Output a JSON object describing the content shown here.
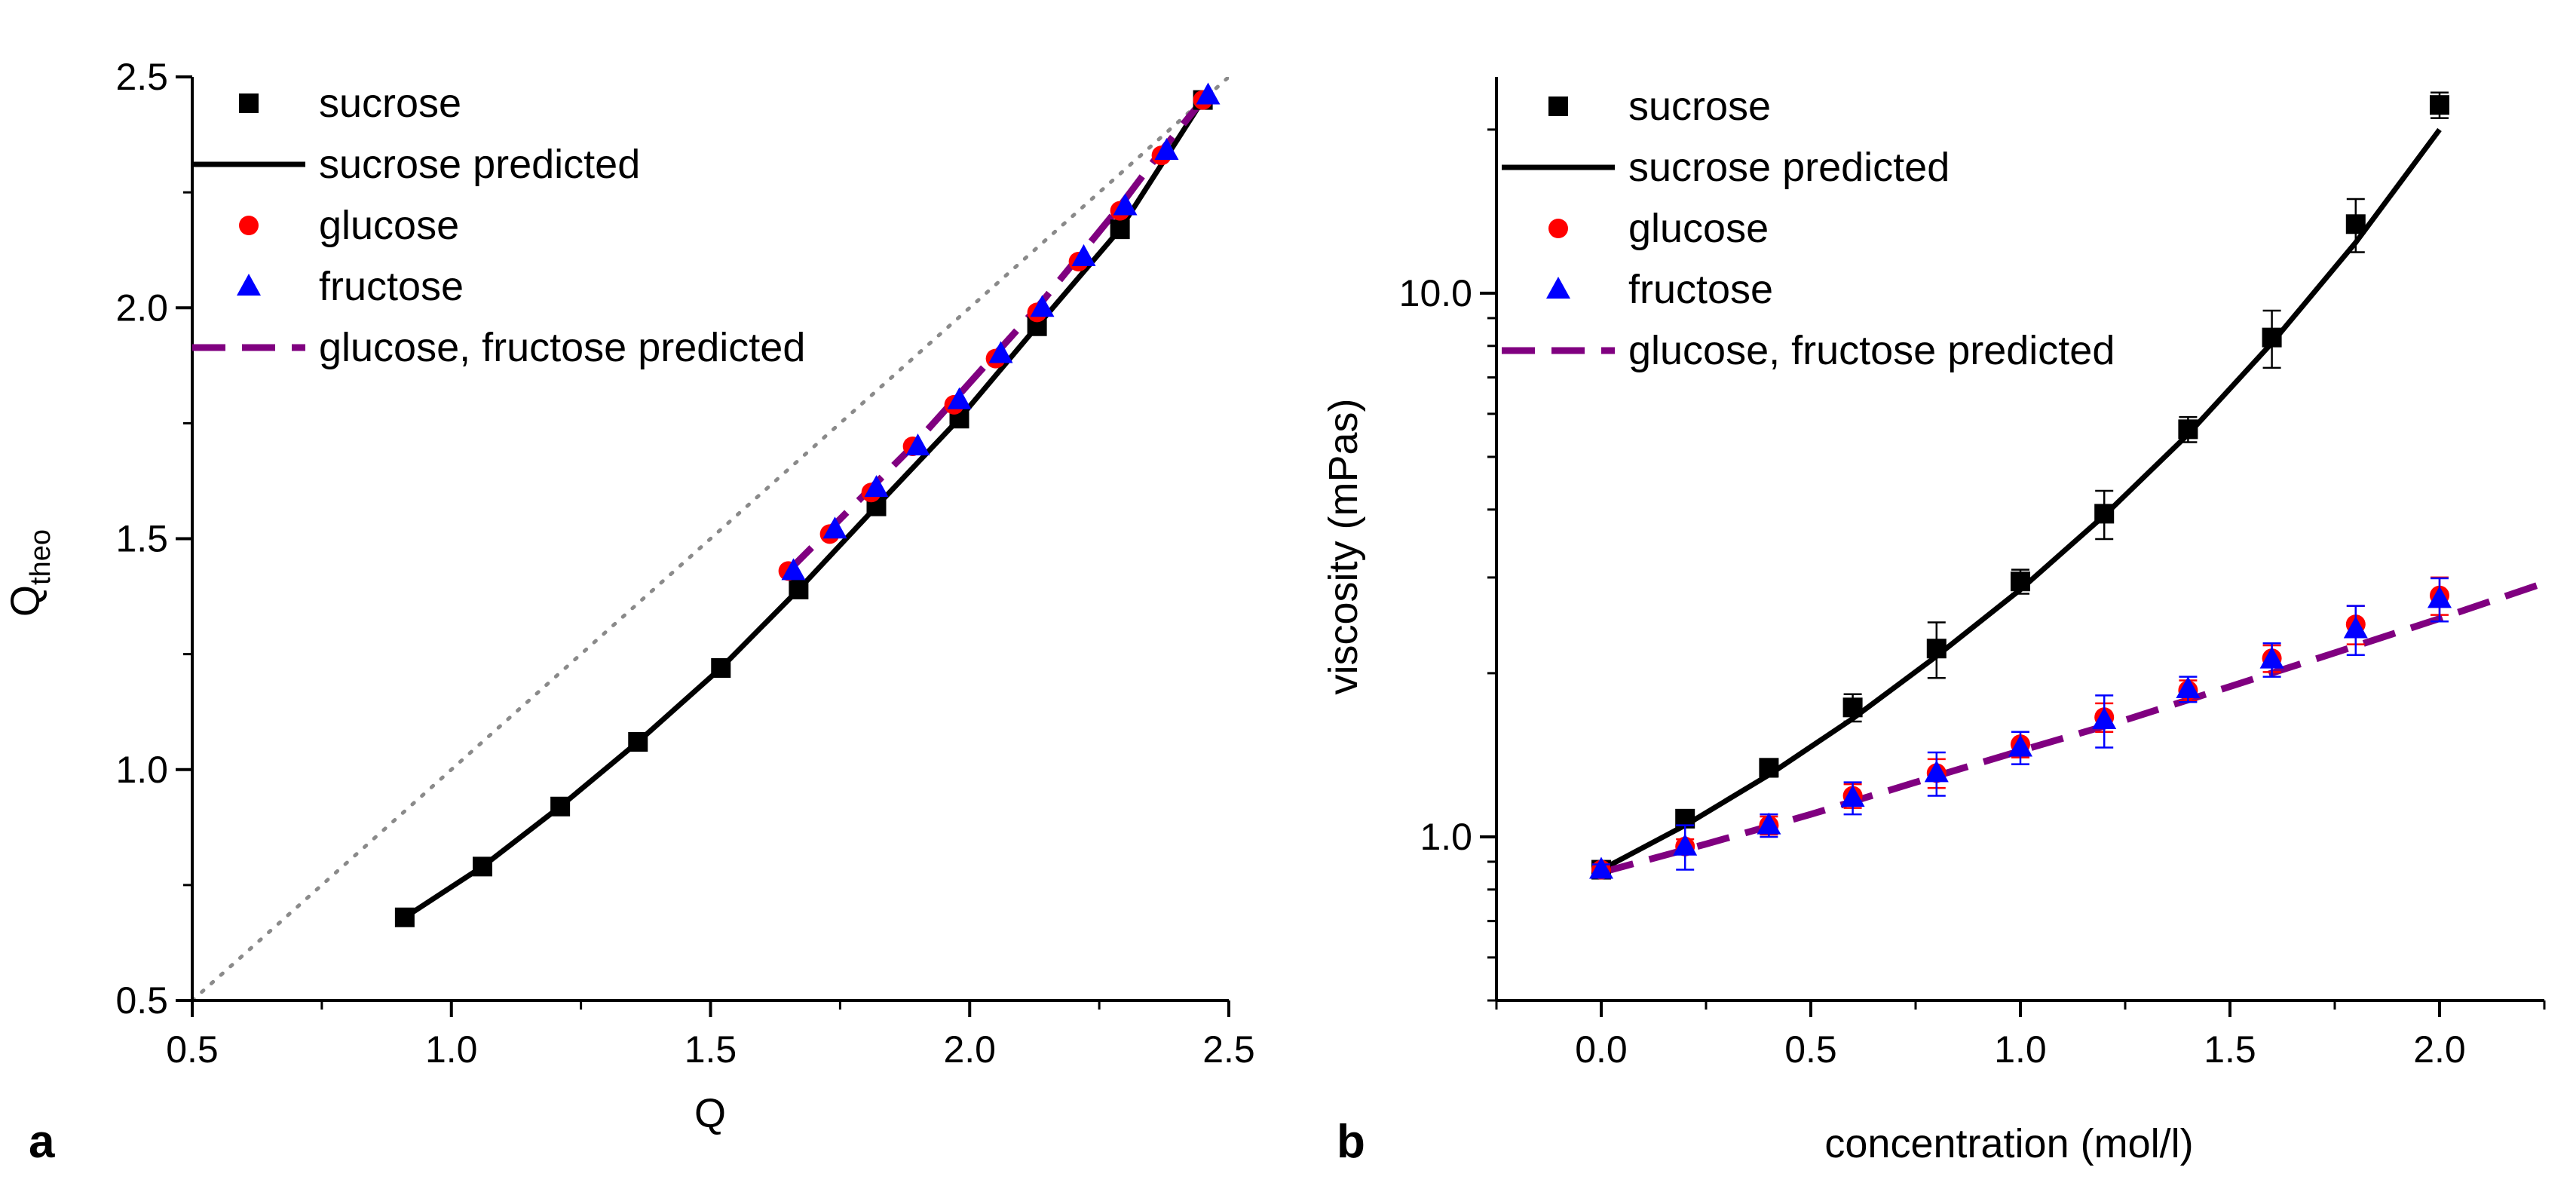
{
  "chart_data": [
    {
      "type": "scatter",
      "panel_label": "a",
      "xlabel": "Q",
      "ylabel_main": "Q",
      "ylabel_sub": "theo",
      "xlim": [
        0.5,
        2.5
      ],
      "ylim": [
        0.5,
        2.5
      ],
      "x_ticks": [
        "0.5",
        "1.0",
        "1.5",
        "2.0",
        "2.5"
      ],
      "y_ticks": [
        "0.5",
        "1.0",
        "1.5",
        "2.0",
        "2.5"
      ],
      "x_tick_values": [
        0.5,
        1.0,
        1.5,
        2.0,
        2.5
      ],
      "y_tick_values": [
        0.5,
        1.0,
        1.5,
        2.0,
        2.5
      ],
      "legend_position": "top-left",
      "reference_line": {
        "name": "y = x",
        "x": [
          0.5,
          2.5
        ],
        "y": [
          0.5,
          2.5
        ]
      },
      "series": [
        {
          "name": "sucrose",
          "marker": "square",
          "color": "#000000",
          "x": [
            0.91,
            1.06,
            1.21,
            1.36,
            1.52,
            1.67,
            1.82,
            1.98,
            2.13,
            2.29,
            2.45
          ],
          "y": [
            0.68,
            0.79,
            0.92,
            1.06,
            1.22,
            1.39,
            1.57,
            1.76,
            1.96,
            2.17,
            2.45
          ]
        },
        {
          "name": "sucrose predicted",
          "line": "solid",
          "color": "#000000",
          "x": [
            0.91,
            1.06,
            1.21,
            1.36,
            1.52,
            1.67,
            1.82,
            1.98,
            2.13,
            2.29,
            2.45
          ],
          "y": [
            0.68,
            0.79,
            0.92,
            1.06,
            1.22,
            1.39,
            1.57,
            1.76,
            1.96,
            2.17,
            2.45
          ]
        },
        {
          "name": "glucose",
          "marker": "circle",
          "color": "#ff0000",
          "x": [
            1.65,
            1.73,
            1.81,
            1.89,
            1.97,
            2.05,
            2.13,
            2.21,
            2.29,
            2.37,
            2.45
          ],
          "y": [
            1.43,
            1.51,
            1.6,
            1.7,
            1.79,
            1.89,
            1.99,
            2.1,
            2.21,
            2.33,
            2.45
          ]
        },
        {
          "name": "fructose",
          "marker": "triangle",
          "color": "#0000ff",
          "x": [
            1.66,
            1.74,
            1.82,
            1.9,
            1.98,
            2.06,
            2.14,
            2.22,
            2.3,
            2.38,
            2.46
          ],
          "y": [
            1.43,
            1.52,
            1.61,
            1.7,
            1.8,
            1.9,
            2.0,
            2.11,
            2.22,
            2.34,
            2.46
          ]
        },
        {
          "name": "glucose, fructose predicted",
          "line": "dashed",
          "color": "#800080",
          "x": [
            1.65,
            1.73,
            1.81,
            1.89,
            1.97,
            2.05,
            2.13,
            2.21,
            2.29,
            2.37,
            2.45
          ],
          "y": [
            1.43,
            1.52,
            1.61,
            1.7,
            1.8,
            1.9,
            2.0,
            2.11,
            2.22,
            2.34,
            2.45
          ]
        }
      ]
    },
    {
      "type": "scatter",
      "panel_label": "b",
      "xlabel": "concentration (mol/l)",
      "ylabel": "viscosity (mPas)",
      "y_scale": "log",
      "xlim": [
        -0.25,
        2.25
      ],
      "ylim": [
        0.5,
        25
      ],
      "x_ticks": [
        "0.0",
        "0.5",
        "1.0",
        "1.5",
        "2.0"
      ],
      "x_tick_values": [
        0.0,
        0.5,
        1.0,
        1.5,
        2.0
      ],
      "y_ticks": [
        "1.0",
        "10.0"
      ],
      "y_tick_values": [
        1.0,
        10.0
      ],
      "legend_position": "top-left",
      "series": [
        {
          "name": "sucrose",
          "marker": "square",
          "color": "#000000",
          "x": [
            0.0,
            0.2,
            0.4,
            0.6,
            0.8,
            1.0,
            1.2,
            1.4,
            1.6,
            1.8,
            2.0
          ],
          "y": [
            0.87,
            1.08,
            1.34,
            1.73,
            2.22,
            2.95,
            3.93,
            5.62,
            8.29,
            13.4,
            22.2
          ],
          "err": [
            0.02,
            0.03,
            0.05,
            0.1,
            0.26,
            0.15,
            0.4,
            0.3,
            1.0,
            1.5,
            1.2
          ]
        },
        {
          "name": "sucrose predicted",
          "line": "solid",
          "color": "#000000",
          "x": [
            0.0,
            0.2,
            0.4,
            0.6,
            0.8,
            1.0,
            1.2,
            1.4,
            1.6,
            1.8,
            2.0
          ],
          "y": [
            0.87,
            1.05,
            1.3,
            1.65,
            2.15,
            2.85,
            3.9,
            5.5,
            8.1,
            12.4,
            20.0
          ]
        },
        {
          "name": "glucose",
          "marker": "circle",
          "color": "#ff0000",
          "x": [
            0.0,
            0.2,
            0.4,
            0.6,
            0.8,
            1.0,
            1.2,
            1.4,
            1.6,
            1.8,
            2.0
          ],
          "y": [
            0.87,
            0.96,
            1.05,
            1.19,
            1.31,
            1.48,
            1.66,
            1.86,
            2.13,
            2.46,
            2.78
          ],
          "err": [
            0.02,
            0.03,
            0.04,
            0.06,
            0.08,
            0.08,
            0.1,
            0.08,
            0.12,
            0.2,
            0.22
          ]
        },
        {
          "name": "fructose",
          "marker": "triangle",
          "color": "#0000ff",
          "x": [
            0.0,
            0.2,
            0.4,
            0.6,
            0.8,
            1.0,
            1.2,
            1.4,
            1.6,
            1.8,
            2.0
          ],
          "y": [
            0.87,
            0.96,
            1.05,
            1.18,
            1.31,
            1.46,
            1.64,
            1.87,
            2.12,
            2.41,
            2.74
          ],
          "err": [
            0.02,
            0.09,
            0.05,
            0.08,
            0.12,
            0.1,
            0.18,
            0.1,
            0.15,
            0.25,
            0.25
          ]
        },
        {
          "name": "glucose, fructose predicted",
          "line": "dashed",
          "color": "#800080",
          "x": [
            0.0,
            0.25,
            0.5,
            0.75,
            1.0,
            1.25,
            1.5,
            1.75,
            2.0,
            2.25
          ],
          "y": [
            0.86,
            0.97,
            1.1,
            1.26,
            1.44,
            1.64,
            1.89,
            2.18,
            2.52,
            2.93
          ]
        }
      ]
    }
  ]
}
